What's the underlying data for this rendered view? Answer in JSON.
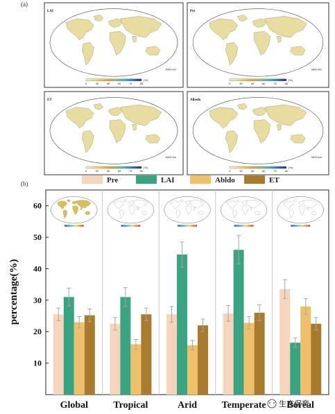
{
  "panels": {
    "a_label": "(a)",
    "b_label": "(b)"
  },
  "maps": [
    {
      "title": "LAI",
      "scale_label": "(%)",
      "ticks": [
        "0",
        "30",
        "45",
        "60",
        "75",
        "85"
      ],
      "scale_note": "5000 km"
    },
    {
      "title": "Pre",
      "scale_label": "(%)",
      "ticks": [
        "0",
        "30",
        "45",
        "60",
        "75",
        "85"
      ],
      "scale_note": "5000 km"
    },
    {
      "title": "ET",
      "scale_label": "(%)",
      "ticks": [
        "0",
        "30",
        "45",
        "60",
        "75",
        "90"
      ],
      "scale_note": "5000 km"
    },
    {
      "title": "Albedo",
      "scale_label": "(%)",
      "ticks": [
        "0",
        "30",
        "45",
        "60",
        "75",
        "90"
      ],
      "scale_note": "5000 km"
    }
  ],
  "colors": {
    "Pre": "#f6d5bd",
    "LAI": "#3aa482",
    "Abldo": "#efc06c",
    "ET": "#a87b2f",
    "error_bar": "#a6a6a6",
    "map_land": "#e8dca0",
    "map_ocean": "#ffffff"
  },
  "chart_data": {
    "type": "bar",
    "categories": [
      "Global",
      "Tropical",
      "Arid",
      "Temperate",
      "Boreal"
    ],
    "series": [
      {
        "name": "Pre",
        "values": [
          25.5,
          22.5,
          25.5,
          25.8,
          33.5
        ],
        "errors": [
          2.0,
          2.0,
          2.5,
          2.5,
          3.0
        ]
      },
      {
        "name": "LAI",
        "values": [
          31.0,
          31.0,
          44.5,
          46.0,
          16.5
        ],
        "errors": [
          2.8,
          3.0,
          4.0,
          4.5,
          1.5
        ]
      },
      {
        "name": "Abldo",
        "values": [
          23.0,
          16.0,
          15.7,
          22.8,
          28.0
        ],
        "errors": [
          1.8,
          1.5,
          1.5,
          2.0,
          2.5
        ]
      },
      {
        "name": "ET",
        "values": [
          25.2,
          25.5,
          22.0,
          26.0,
          22.5
        ],
        "errors": [
          2.0,
          2.0,
          2.0,
          2.5,
          2.0
        ]
      }
    ],
    "ylabel": "percentage(%)",
    "xlabel": "",
    "ylim": [
      0,
      65
    ],
    "yticks": [
      10,
      20,
      30,
      40,
      50,
      60
    ],
    "legend_position": "top",
    "grid": false
  },
  "watermark": "生态保育"
}
